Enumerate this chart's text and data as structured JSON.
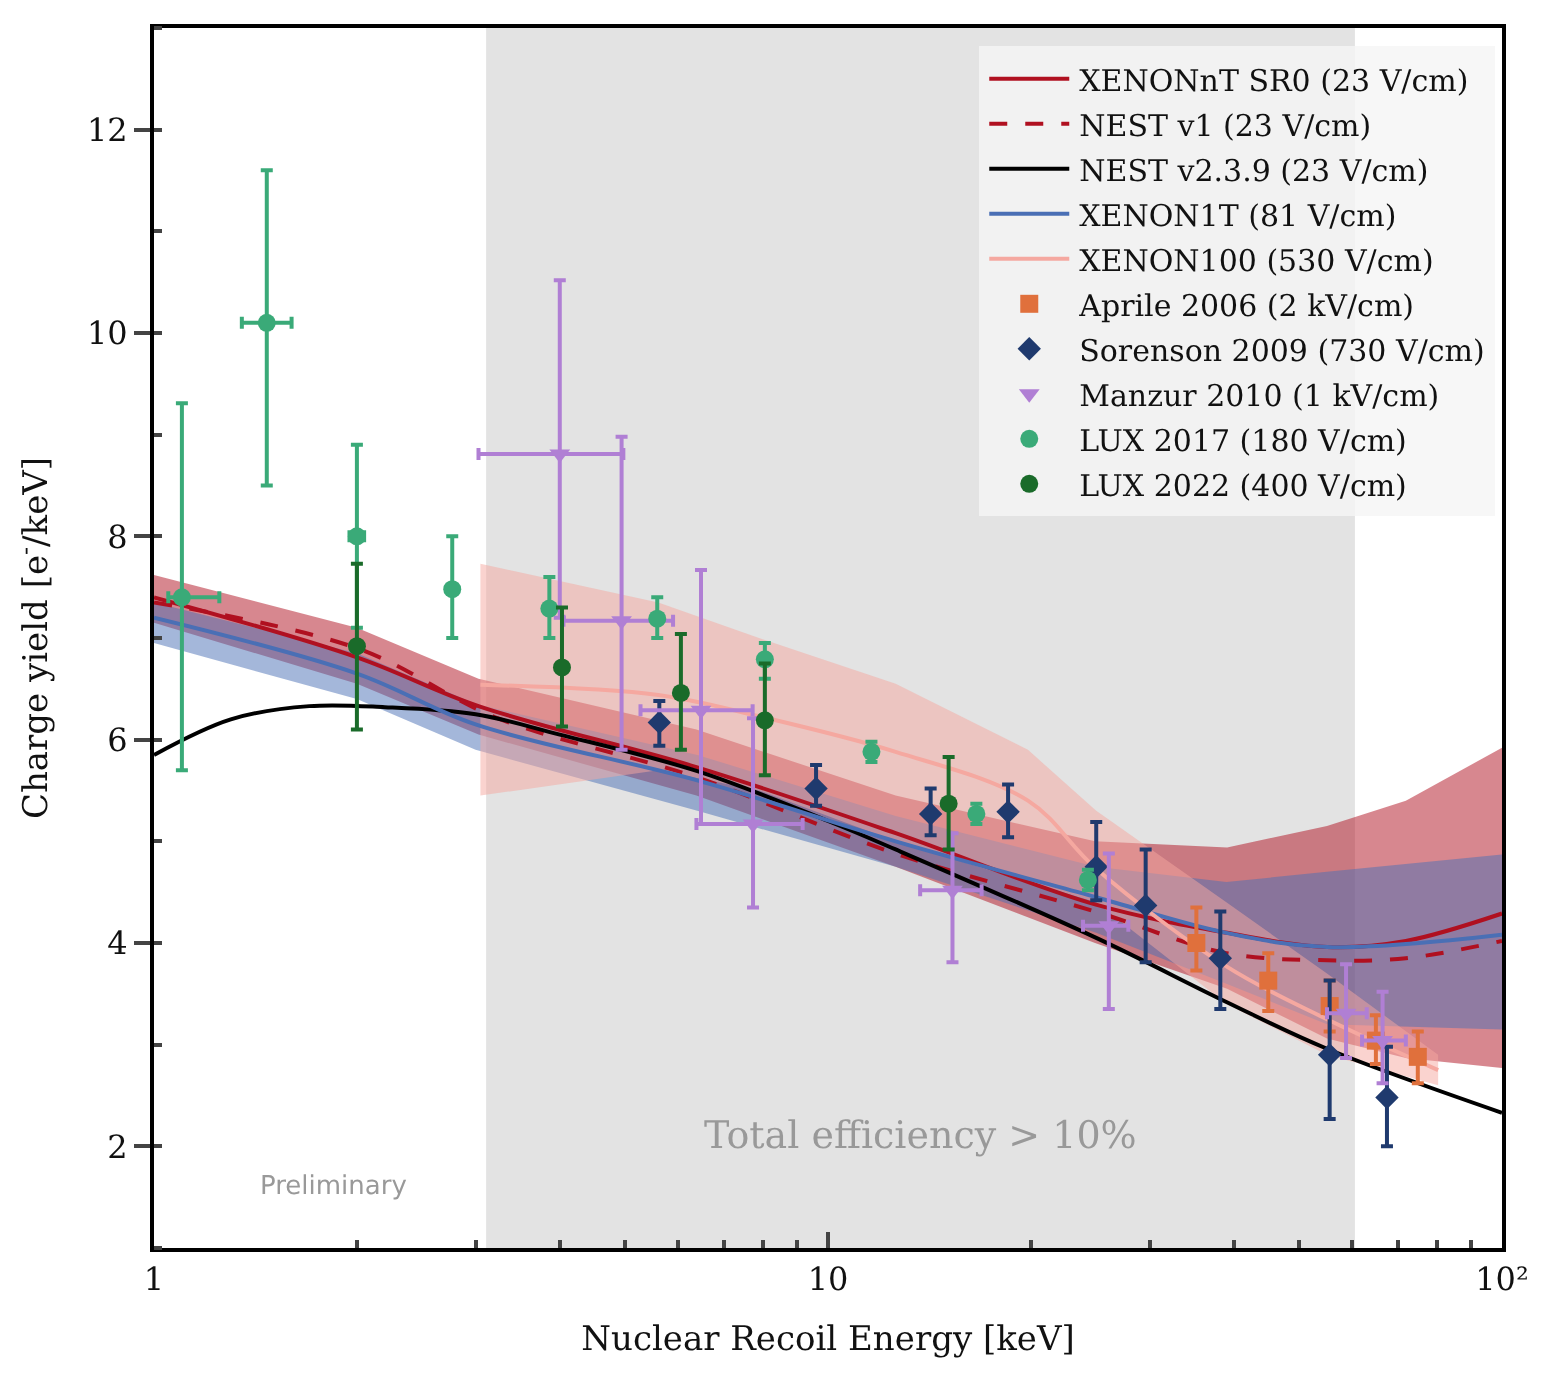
{
  "chart_data": {
    "type": "line",
    "xlabel": "Nuclear Recoil Energy [keV]",
    "ylabel": "Charge yield [e$^{-}$/keV]",
    "log": "x",
    "xlim": [
      1,
      100
    ],
    "xticks": [
      1,
      10,
      {
        "value": 100,
        "label": "10²"
      }
    ],
    "ylim": [
      1,
      13
    ],
    "yticks": [
      2,
      4,
      6,
      8,
      10,
      12
    ],
    "grid": false,
    "legend": "top right",
    "bands": [
      {
        "axis": "x",
        "from": 3.11,
        "to": 60.5,
        "label": "Total efficiency > 10%",
        "color": "#e3e3e3"
      }
    ],
    "annotations": [
      "Preliminary"
    ],
    "series": [
      {
        "name": "XENONnT SR0 (23 V/cm)",
        "color": "#b01020",
        "line_style": "solid",
        "x": [
          1,
          2,
          3.03,
          6.38,
          12.6,
          24.9,
          39.1,
          55,
          72,
          100
        ],
        "values": [
          7.4,
          6.81,
          6.33,
          5.73,
          5.08,
          4.38,
          4.1,
          3.96,
          4.02,
          4.29
        ],
        "lower": [
          7.15,
          6.55,
          6.05,
          5.45,
          4.75,
          4.0,
          3.55,
          3.06,
          2.87,
          2.77
        ],
        "upper": [
          7.62,
          7.1,
          6.6,
          6.1,
          5.45,
          5.0,
          4.94,
          5.15,
          5.4,
          5.92
        ]
      },
      {
        "name": "NEST v1 (23 V/cm)",
        "color": "#b01020",
        "line_style": "dashed",
        "x": [
          1,
          2,
          3.24,
          6.38,
          12.6,
          24.9,
          39,
          55,
          72,
          100
        ],
        "values": [
          7.35,
          6.9,
          6.21,
          5.63,
          4.88,
          4.31,
          3.9,
          3.83,
          3.85,
          4.02
        ]
      },
      {
        "name": "NEST v2.3.9 (23 V/cm)",
        "color": "#000000",
        "line_style": "solid",
        "x": [
          1,
          1.3,
          1.7,
          2.2,
          3,
          4,
          6.4,
          10,
          12.6,
          25,
          39,
          55,
          100
        ],
        "values": [
          5.85,
          6.2,
          6.33,
          6.32,
          6.25,
          6.05,
          5.69,
          5.2,
          4.92,
          4.05,
          3.42,
          2.96,
          2.33
        ]
      },
      {
        "name": "XENON1T (81 V/cm)",
        "color": "#4a6fb5",
        "line_style": "solid",
        "x": [
          1,
          2,
          3,
          6.4,
          12.6,
          25,
          39,
          55,
          100
        ],
        "values": [
          7.2,
          6.65,
          6.15,
          5.6,
          5.0,
          4.45,
          4.1,
          3.96,
          4.08
        ],
        "lower": [
          6.95,
          6.4,
          5.9,
          5.3,
          4.75,
          4.1,
          3.6,
          3.2,
          3.15
        ],
        "upper": [
          7.35,
          6.85,
          6.35,
          5.85,
          5.25,
          4.75,
          4.6,
          4.7,
          4.87
        ]
      },
      {
        "name": "XENON100 (530 V/cm)",
        "color": "#f5a8a0",
        "line_style": "solid",
        "x": [
          3.05,
          5.6,
          7.9,
          12.6,
          19.8,
          25,
          39,
          55,
          80.4
        ],
        "values": [
          6.54,
          6.44,
          6.23,
          5.88,
          5.4,
          4.73,
          3.77,
          3.25,
          2.75
        ],
        "lower": [
          5.45,
          5.7,
          5.5,
          5.0,
          4.6,
          4.4,
          3.4,
          2.9,
          2.6
        ],
        "upper": [
          7.73,
          7.35,
          7.0,
          6.55,
          5.9,
          5.3,
          4.4,
          3.7,
          2.9
        ]
      },
      {
        "name": "Aprile 2006 (2 kV/cm)",
        "type": "scatter",
        "marker": "square",
        "color": "#e0703c",
        "x": [
          35.2,
          45.0,
          55.5,
          65,
          75.0
        ],
        "values": [
          4.0,
          3.63,
          3.38,
          3.04,
          2.88
        ],
        "errors": [
          [
            3.73,
            4.35
          ],
          [
            3.33,
            3.9
          ],
          [
            3.13,
            3.63
          ],
          [
            2.81,
            3.29
          ],
          [
            2.62,
            3.13
          ]
        ]
      },
      {
        "name": "Sorenson 2009 (730 V/cm)",
        "type": "scatter",
        "marker": "diamond",
        "color": "#1f3a6e",
        "x": [
          5.62,
          9.6,
          14.2,
          18.5,
          25.0,
          29.6,
          38.2,
          55.5,
          67.5
        ],
        "values": [
          6.17,
          5.52,
          5.27,
          5.29,
          4.75,
          4.37,
          3.85,
          2.9,
          2.48
        ],
        "errors": [
          [
            5.94,
            6.38
          ],
          [
            5.35,
            5.75
          ],
          [
            5.06,
            5.52
          ],
          [
            5.04,
            5.56
          ],
          [
            4.42,
            5.19
          ],
          [
            3.81,
            4.92
          ],
          [
            3.35,
            4.31
          ],
          [
            2.27,
            3.63
          ],
          [
            2.0,
            2.98
          ]
        ]
      },
      {
        "name": "Manzur 2010 (1 kV/cm)",
        "type": "scatter",
        "marker": "triangle",
        "color": "#b07fd4",
        "x": [
          4.0,
          4.94,
          6.48,
          7.74,
          15.3,
          26.1,
          58.7,
          66.5
        ],
        "values": [
          8.81,
          7.17,
          6.29,
          5.17,
          4.52,
          4.17,
          3.31,
          3.04
        ],
        "errors": [
          [
            7.2,
            10.52
          ],
          [
            5.9,
            8.98
          ],
          [
            5.17,
            7.67
          ],
          [
            4.35,
            6.21
          ],
          [
            3.81,
            5.08
          ],
          [
            3.35,
            4.88
          ],
          [
            2.87,
            3.79
          ],
          [
            2.62,
            3.52
          ]
        ],
        "xerrors": [
          [
            3.03,
            4.97
          ],
          [
            4.05,
            5.89
          ],
          [
            5.27,
            7.73
          ],
          [
            6.38,
            9.17
          ],
          [
            13.7,
            16.9
          ],
          [
            23.9,
            27.9
          ],
          [
            55,
            63
          ],
          [
            62,
            72
          ]
        ]
      },
      {
        "name": "LUX 2017 (180 V/cm)",
        "type": "scatter",
        "marker": "circle",
        "color": "#3aaa78",
        "x": [
          1.1,
          1.47,
          2.0,
          2.77,
          3.86,
          5.58,
          8.06,
          11.6,
          16.6,
          24.3
        ],
        "values": [
          7.4,
          10.1,
          8.0,
          7.48,
          7.29,
          7.19,
          6.79,
          5.88,
          5.27,
          4.62
        ],
        "errors": [
          [
            5.7,
            9.31
          ],
          [
            8.5,
            11.6
          ],
          [
            7.1,
            8.9
          ],
          [
            7.0,
            8.0
          ],
          [
            7.0,
            7.6
          ],
          [
            7.0,
            7.4
          ],
          [
            6.6,
            6.95
          ],
          [
            5.78,
            5.98
          ],
          [
            5.17,
            5.37
          ],
          [
            4.52,
            4.72
          ]
        ],
        "xerrors": [
          [
            1.05,
            1.25
          ],
          [
            1.35,
            1.6
          ],
          [
            1.95,
            2.05
          ],
          null,
          null,
          null,
          null,
          null,
          null,
          null
        ]
      },
      {
        "name": "LUX 2022 (400 V/cm)",
        "type": "scatter",
        "marker": "circle",
        "color": "#1a6b2a",
        "x": [
          2.0,
          4.03,
          6.05,
          8.06,
          15.1
        ],
        "values": [
          6.92,
          6.71,
          6.46,
          6.19,
          5.37
        ],
        "errors": [
          [
            6.1,
            7.73
          ],
          [
            6.13,
            7.3
          ],
          [
            5.9,
            7.04
          ],
          [
            5.65,
            6.75
          ],
          [
            4.92,
            5.83
          ]
        ]
      }
    ]
  }
}
